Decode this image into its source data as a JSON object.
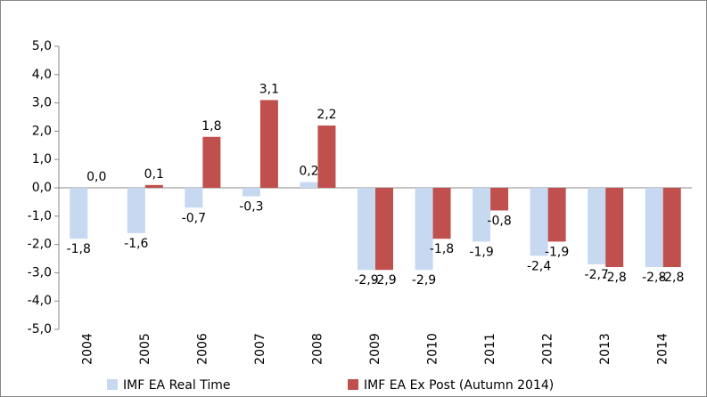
{
  "chart_data": {
    "type": "bar",
    "categories": [
      "2004",
      "2005",
      "2006",
      "2007",
      "2008",
      "2009",
      "2010",
      "2011",
      "2012",
      "2013",
      "2014"
    ],
    "series": [
      {
        "name": "IMF EA Real Time",
        "color": "#c6d9f1",
        "values": [
          -1.8,
          -1.6,
          -0.7,
          -0.3,
          0.2,
          -2.9,
          -2.9,
          -1.9,
          -2.4,
          -2.7,
          -2.8
        ],
        "value_labels": [
          "-1,8",
          "-1,6",
          "-0,7",
          "-0,3",
          "0,2",
          "-2,9",
          "-2,9",
          "-1,9",
          "-2,4",
          "-2,7",
          "-2,8"
        ]
      },
      {
        "name": "IMF EA Ex Post (Autumn 2014)",
        "color": "#c0504d",
        "values": [
          0.0,
          0.1,
          1.8,
          3.1,
          2.2,
          -2.9,
          -1.8,
          -0.8,
          -1.9,
          -2.8,
          -2.8
        ],
        "value_labels": [
          "0,0",
          "0,1",
          "1,8",
          "3,1",
          "2,2",
          "-2,9",
          "-1,8",
          "-0,8",
          "-1,9",
          "-2,8",
          "-2,8"
        ]
      }
    ],
    "ylim": [
      -5,
      5
    ],
    "yticks": [
      {
        "value": -5,
        "label": "-5,0"
      },
      {
        "value": -4,
        "label": "-4,0"
      },
      {
        "value": -3,
        "label": "-3,0"
      },
      {
        "value": -2,
        "label": "-2,0"
      },
      {
        "value": -1,
        "label": "-1,0"
      },
      {
        "value": 0,
        "label": "0,0"
      },
      {
        "value": 1,
        "label": "1,0"
      },
      {
        "value": 2,
        "label": "2,0"
      },
      {
        "value": 3,
        "label": "3,0"
      },
      {
        "value": 4,
        "label": "4,0"
      },
      {
        "value": 5,
        "label": "5,0"
      }
    ],
    "grid": false,
    "legend": "bottom"
  }
}
